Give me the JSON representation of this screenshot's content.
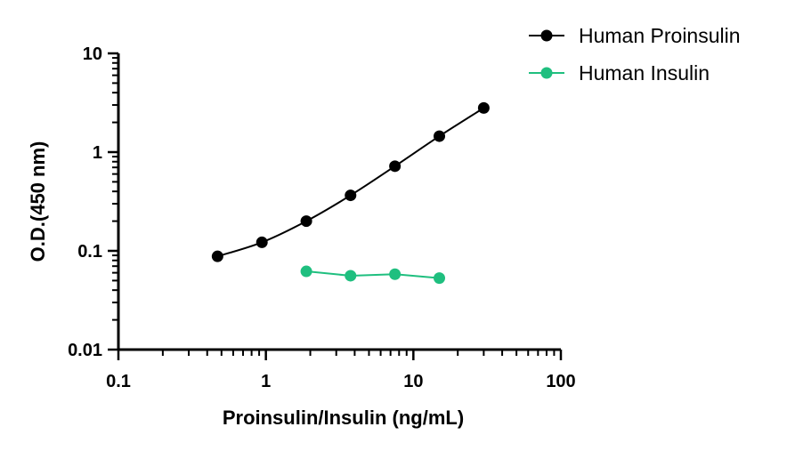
{
  "chart_data": {
    "type": "line",
    "title": "",
    "xlabel": "Proinsulin/Insulin (ng/mL)",
    "ylabel": "O.D.(450 nm)",
    "xscale": "log",
    "yscale": "log",
    "xlim": [
      0.1,
      100
    ],
    "ylim": [
      0.01,
      10
    ],
    "x_ticks": [
      {
        "value": 0.1,
        "label": "0.1"
      },
      {
        "value": 1,
        "label": "1"
      },
      {
        "value": 10,
        "label": "10"
      },
      {
        "value": 100,
        "label": "100"
      }
    ],
    "y_ticks": [
      {
        "value": 0.01,
        "label": "0.01"
      },
      {
        "value": 0.1,
        "label": "0.1"
      },
      {
        "value": 1,
        "label": "1"
      },
      {
        "value": 10,
        "label": "10"
      }
    ],
    "grid": false,
    "legend_position": "top-right",
    "series": [
      {
        "name": "Human Proinsulin",
        "color": "#000000",
        "x": [
          0.47,
          0.94,
          1.88,
          3.75,
          7.5,
          15,
          30
        ],
        "y": [
          0.088,
          0.122,
          0.2,
          0.365,
          0.72,
          1.45,
          2.8
        ]
      },
      {
        "name": "Human Insulin",
        "color": "#1fbf7f",
        "x": [
          1.88,
          3.75,
          7.5,
          15
        ],
        "y": [
          0.062,
          0.056,
          0.058,
          0.053
        ]
      }
    ]
  }
}
